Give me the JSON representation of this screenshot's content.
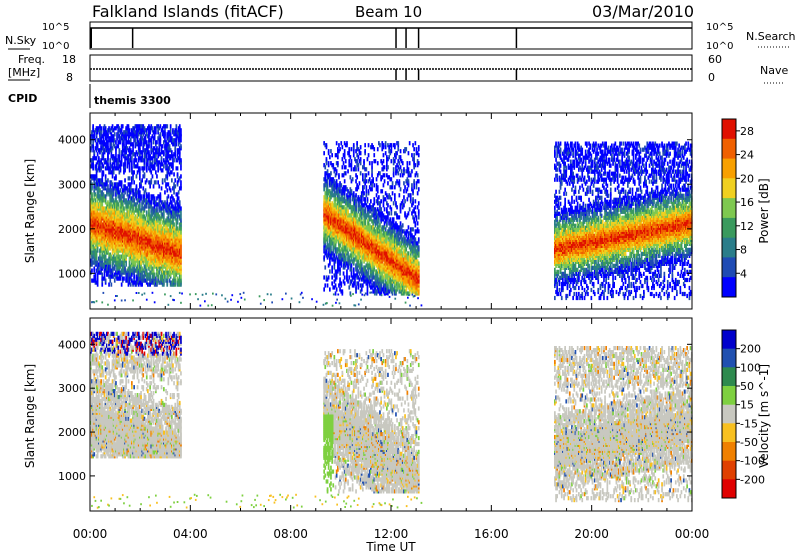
{
  "header": {
    "station": "Falkland Islands (fitACF)",
    "beam": "Beam 10",
    "date": "03/Mar/2010"
  },
  "params": {
    "nsky_label": "N.Sky",
    "nsearch_label": "N.Search",
    "nsky_ticks": [
      "10^5",
      "10^0"
    ],
    "nsearch_ticks": [
      "10^5",
      "10^0"
    ],
    "freq_label_1": "Freq.",
    "freq_label_2": "[MHz]",
    "freq_ticks": [
      "18",
      "8"
    ],
    "nave_label": "Nave",
    "nave_ticks": [
      "60",
      "0"
    ],
    "cpid_label": "CPID",
    "cpid_value": "themis 3300"
  },
  "chart_data": [
    {
      "type": "heatmap",
      "panel": "power",
      "ylabel": "Slant Range [km]",
      "yticks": [
        1000,
        2000,
        3000,
        4000
      ],
      "ylim": [
        200,
        4600
      ],
      "xlim": [
        0,
        24
      ],
      "colorbar_label": "Power [dB]",
      "colorbar_ticks": [
        4,
        8,
        12,
        16,
        20,
        24,
        28
      ],
      "colorbar_range": [
        0,
        30
      ],
      "colors": [
        "#0000ff",
        "#1f4bb4",
        "#2a7d8a",
        "#3a9a5e",
        "#7ec850",
        "#f0d020",
        "#f8a000",
        "#f06000",
        "#e01000"
      ],
      "echo_regions": [
        {
          "t0": 0.0,
          "t1": 3.6,
          "rmin": 700,
          "rmax": 4300
        },
        {
          "t0": 9.3,
          "t1": 13.1,
          "rmin": 500,
          "rmax": 3900
        },
        {
          "t0": 18.5,
          "t1": 24.0,
          "rmin": 400,
          "rmax": 3900
        }
      ]
    },
    {
      "type": "heatmap",
      "panel": "velocity",
      "ylabel": "Slant Range [km]",
      "yticks": [
        1000,
        2000,
        3000,
        4000
      ],
      "ylim": [
        200,
        4600
      ],
      "xlim": [
        0,
        24
      ],
      "xlabel": "Time UT",
      "xticks": [
        "00:00",
        "04:00",
        "08:00",
        "12:00",
        "16:00",
        "20:00",
        "00:00"
      ],
      "colorbar_label": "Velocity [m s^-1]",
      "colorbar_ticks": [
        200,
        100,
        50,
        15,
        -15,
        -50,
        -100,
        -200
      ],
      "colors": [
        "#0000cc",
        "#2050b0",
        "#2e8a4e",
        "#7ed040",
        "#c8c8c0",
        "#f8c020",
        "#f08000",
        "#e04000",
        "#e00000"
      ],
      "echo_regions": [
        {
          "t0": 0.0,
          "t1": 3.6,
          "rmin": 1400,
          "rmax": 4200
        },
        {
          "t0": 9.3,
          "t1": 13.1,
          "rmin": 600,
          "rmax": 3800
        },
        {
          "t0": 18.5,
          "t1": 24.0,
          "rmin": 400,
          "rmax": 3900
        }
      ]
    }
  ]
}
